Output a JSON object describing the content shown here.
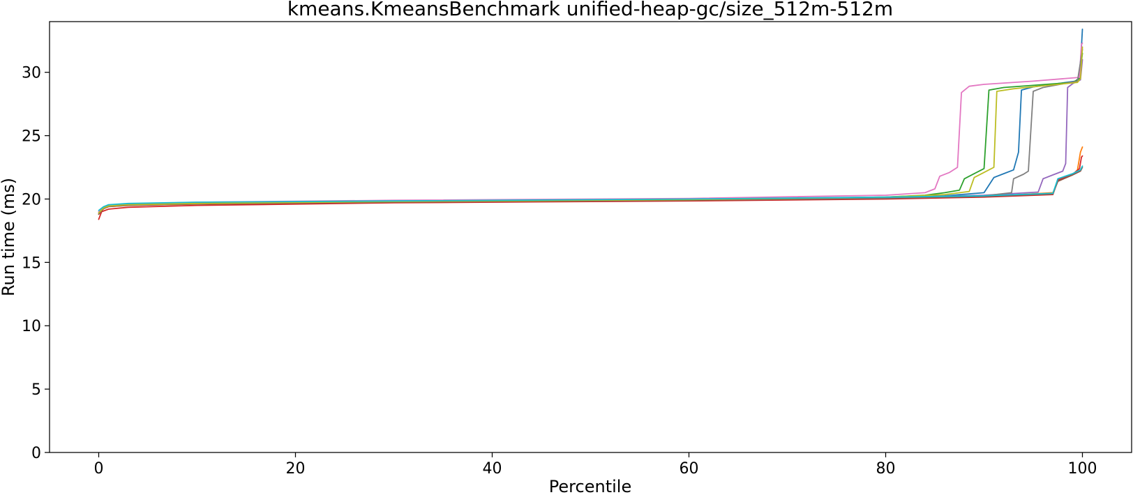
{
  "chart_data": {
    "type": "line",
    "title": "kmeans.KmeansBenchmark unified-heap-gc/size_512m-512m",
    "xlabel": "Percentile",
    "ylabel": "Run time (ms)",
    "xlim": [
      -5,
      105
    ],
    "ylim": [
      0,
      34
    ],
    "xticks": [
      0,
      20,
      40,
      60,
      80,
      100
    ],
    "yticks": [
      0,
      5,
      10,
      15,
      20,
      25,
      30
    ],
    "grid": false,
    "legend": "none",
    "series": [
      {
        "color": "#1f77b4",
        "points": [
          [
            0,
            18.9
          ],
          [
            0.5,
            19.3
          ],
          [
            1,
            19.45
          ],
          [
            3,
            19.55
          ],
          [
            10,
            19.65
          ],
          [
            30,
            19.8
          ],
          [
            60,
            19.95
          ],
          [
            80,
            20.1
          ],
          [
            86,
            20.25
          ],
          [
            90,
            20.5
          ],
          [
            91,
            21.7
          ],
          [
            92,
            22.0
          ],
          [
            93,
            22.3
          ],
          [
            93.5,
            23.7
          ],
          [
            93.8,
            28.6
          ],
          [
            95,
            28.85
          ],
          [
            99.3,
            29.3
          ],
          [
            99.7,
            29.6
          ],
          [
            99.9,
            32.0
          ],
          [
            100,
            33.4
          ]
        ]
      },
      {
        "color": "#ff7f0e",
        "points": [
          [
            0,
            18.8
          ],
          [
            0.5,
            19.25
          ],
          [
            1,
            19.4
          ],
          [
            3,
            19.5
          ],
          [
            10,
            19.6
          ],
          [
            30,
            19.75
          ],
          [
            60,
            19.9
          ],
          [
            80,
            20.05
          ],
          [
            90,
            20.2
          ],
          [
            97,
            20.5
          ],
          [
            97.5,
            21.4
          ],
          [
            99,
            21.9
          ],
          [
            99.5,
            22.3
          ],
          [
            99.8,
            23.7
          ],
          [
            100,
            24.1
          ]
        ]
      },
      {
        "color": "#2ca02c",
        "points": [
          [
            0,
            18.9
          ],
          [
            0.5,
            19.3
          ],
          [
            1,
            19.45
          ],
          [
            3,
            19.55
          ],
          [
            10,
            19.65
          ],
          [
            30,
            19.8
          ],
          [
            60,
            19.95
          ],
          [
            80,
            20.15
          ],
          [
            84,
            20.3
          ],
          [
            86,
            20.5
          ],
          [
            87.5,
            20.7
          ],
          [
            88,
            21.6
          ],
          [
            89,
            22.0
          ],
          [
            90,
            22.4
          ],
          [
            90.5,
            28.6
          ],
          [
            92,
            28.8
          ],
          [
            99,
            29.2
          ],
          [
            99.7,
            29.5
          ],
          [
            100,
            31.5
          ]
        ]
      },
      {
        "color": "#d62728",
        "points": [
          [
            0,
            18.4
          ],
          [
            0.3,
            19.0
          ],
          [
            1,
            19.2
          ],
          [
            3,
            19.35
          ],
          [
            10,
            19.5
          ],
          [
            30,
            19.7
          ],
          [
            60,
            19.85
          ],
          [
            80,
            20.0
          ],
          [
            90,
            20.15
          ],
          [
            97,
            20.35
          ],
          [
            97.5,
            21.5
          ],
          [
            99,
            21.95
          ],
          [
            99.7,
            22.4
          ],
          [
            99.9,
            23.3
          ],
          [
            100,
            23.4
          ]
        ]
      },
      {
        "color": "#9467bd",
        "points": [
          [
            0,
            18.9
          ],
          [
            0.5,
            19.3
          ],
          [
            1,
            19.45
          ],
          [
            3,
            19.55
          ],
          [
            10,
            19.65
          ],
          [
            30,
            19.8
          ],
          [
            60,
            19.95
          ],
          [
            80,
            20.1
          ],
          [
            90,
            20.3
          ],
          [
            95.5,
            20.55
          ],
          [
            96,
            21.6
          ],
          [
            97,
            21.9
          ],
          [
            98,
            22.2
          ],
          [
            98.3,
            22.8
          ],
          [
            98.5,
            28.8
          ],
          [
            99,
            29.1
          ],
          [
            99.8,
            29.4
          ],
          [
            100,
            31.0
          ]
        ]
      },
      {
        "color": "#8c564b",
        "points": [
          [
            0,
            18.8
          ],
          [
            0.5,
            19.25
          ],
          [
            1,
            19.4
          ],
          [
            3,
            19.5
          ],
          [
            10,
            19.6
          ],
          [
            30,
            19.75
          ],
          [
            60,
            19.9
          ],
          [
            80,
            20.05
          ],
          [
            90,
            20.2
          ],
          [
            97,
            20.4
          ],
          [
            97.5,
            21.4
          ],
          [
            99,
            21.9
          ],
          [
            99.8,
            22.2
          ],
          [
            100,
            22.5
          ]
        ]
      },
      {
        "color": "#e377c2",
        "points": [
          [
            0,
            19.0
          ],
          [
            0.5,
            19.35
          ],
          [
            1,
            19.5
          ],
          [
            3,
            19.6
          ],
          [
            10,
            19.75
          ],
          [
            30,
            19.9
          ],
          [
            60,
            20.05
          ],
          [
            80,
            20.3
          ],
          [
            84,
            20.5
          ],
          [
            85,
            20.8
          ],
          [
            85.5,
            21.8
          ],
          [
            86.5,
            22.1
          ],
          [
            87.3,
            22.5
          ],
          [
            87.7,
            28.4
          ],
          [
            88.5,
            28.9
          ],
          [
            90,
            29.05
          ],
          [
            95,
            29.3
          ],
          [
            99.7,
            29.6
          ],
          [
            99.9,
            32.2
          ],
          [
            100,
            32.3
          ]
        ]
      },
      {
        "color": "#7f7f7f",
        "points": [
          [
            0,
            18.9
          ],
          [
            0.5,
            19.3
          ],
          [
            1,
            19.45
          ],
          [
            3,
            19.55
          ],
          [
            10,
            19.65
          ],
          [
            30,
            19.8
          ],
          [
            60,
            19.95
          ],
          [
            80,
            20.1
          ],
          [
            90,
            20.25
          ],
          [
            92.8,
            20.5
          ],
          [
            93,
            21.6
          ],
          [
            94,
            21.95
          ],
          [
            94.5,
            22.2
          ],
          [
            95,
            28.5
          ],
          [
            96,
            28.8
          ],
          [
            99.5,
            29.3
          ],
          [
            100,
            31.8
          ]
        ]
      },
      {
        "color": "#bcbd22",
        "points": [
          [
            0,
            18.9
          ],
          [
            0.5,
            19.3
          ],
          [
            1,
            19.45
          ],
          [
            3,
            19.55
          ],
          [
            10,
            19.65
          ],
          [
            30,
            19.8
          ],
          [
            60,
            19.95
          ],
          [
            80,
            20.15
          ],
          [
            86,
            20.35
          ],
          [
            88.5,
            20.6
          ],
          [
            89,
            21.7
          ],
          [
            90,
            22.1
          ],
          [
            91,
            22.5
          ],
          [
            91.3,
            28.5
          ],
          [
            93,
            28.7
          ],
          [
            99.5,
            29.2
          ],
          [
            99.8,
            29.5
          ],
          [
            100,
            32.0
          ]
        ]
      },
      {
        "color": "#17becf",
        "points": [
          [
            0,
            19.1
          ],
          [
            0.5,
            19.4
          ],
          [
            1,
            19.55
          ],
          [
            3,
            19.65
          ],
          [
            10,
            19.75
          ],
          [
            30,
            19.85
          ],
          [
            60,
            20.0
          ],
          [
            80,
            20.15
          ],
          [
            90,
            20.25
          ],
          [
            97,
            20.45
          ],
          [
            97.5,
            21.6
          ],
          [
            99,
            22.0
          ],
          [
            99.8,
            22.3
          ],
          [
            100,
            22.6
          ]
        ]
      }
    ]
  }
}
